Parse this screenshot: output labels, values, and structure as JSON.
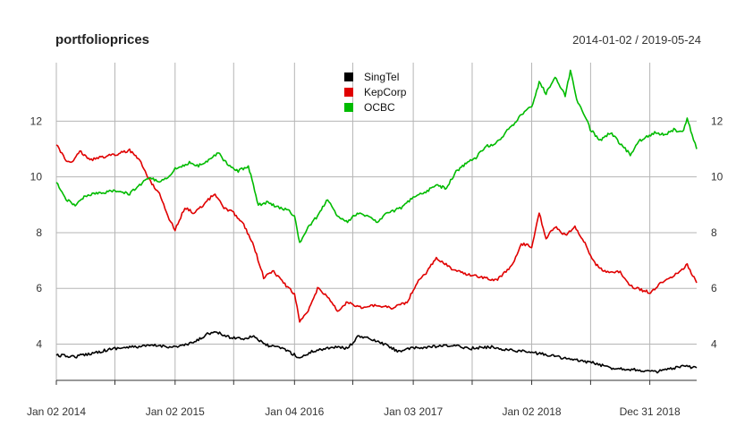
{
  "chart_data": {
    "type": "line",
    "title": "portfolioprices",
    "subtitle": "2014-01-02 / 2019-05-24",
    "xlabel": "",
    "ylabel": "",
    "x_range": [
      "2014-01-02",
      "2019-05-24"
    ],
    "ylim": [
      2.7,
      14.1
    ],
    "y_ticks": [
      4,
      6,
      8,
      10,
      12
    ],
    "x_ticks": [
      {
        "date": "2014-01-02",
        "label": "Jan 02 2014"
      },
      {
        "date": "2015-01-02",
        "label": "Jan 02 2015"
      },
      {
        "date": "2016-01-04",
        "label": "Jan 04 2016"
      },
      {
        "date": "2017-01-03",
        "label": "Jan 03 2017"
      },
      {
        "date": "2018-01-02",
        "label": "Jan 02 2018"
      },
      {
        "date": "2018-12-31",
        "label": "Dec 31 2018"
      }
    ],
    "minor_grid_dates": [
      "2014-07-01",
      "2015-07-01",
      "2016-07-01",
      "2017-07-03",
      "2018-07-02"
    ],
    "grid": true,
    "legend_position": "top-center",
    "series": [
      {
        "name": "SingTel",
        "color": "#000000",
        "points": [
          [
            "2014-01-02",
            3.6
          ],
          [
            "2014-03-01",
            3.55
          ],
          [
            "2014-05-01",
            3.7
          ],
          [
            "2014-07-01",
            3.85
          ],
          [
            "2014-09-01",
            3.9
          ],
          [
            "2014-11-01",
            3.95
          ],
          [
            "2015-01-02",
            3.9
          ],
          [
            "2015-02-15",
            4.0
          ],
          [
            "2015-03-15",
            4.15
          ],
          [
            "2015-04-15",
            4.4
          ],
          [
            "2015-05-15",
            4.4
          ],
          [
            "2015-06-15",
            4.25
          ],
          [
            "2015-08-01",
            4.2
          ],
          [
            "2015-09-01",
            4.3
          ],
          [
            "2015-10-01",
            4.0
          ],
          [
            "2015-11-01",
            3.9
          ],
          [
            "2015-12-01",
            3.85
          ],
          [
            "2016-01-20",
            3.5
          ],
          [
            "2016-03-01",
            3.75
          ],
          [
            "2016-05-01",
            3.9
          ],
          [
            "2016-06-15",
            3.85
          ],
          [
            "2016-07-20",
            4.3
          ],
          [
            "2016-09-01",
            4.15
          ],
          [
            "2016-10-15",
            3.95
          ],
          [
            "2016-11-15",
            3.75
          ],
          [
            "2017-01-03",
            3.85
          ],
          [
            "2017-03-01",
            3.9
          ],
          [
            "2017-05-01",
            3.95
          ],
          [
            "2017-07-01",
            3.85
          ],
          [
            "2017-09-01",
            3.9
          ],
          [
            "2017-10-15",
            3.8
          ],
          [
            "2017-12-01",
            3.75
          ],
          [
            "2018-01-02",
            3.7
          ],
          [
            "2018-03-01",
            3.6
          ],
          [
            "2018-05-01",
            3.45
          ],
          [
            "2018-07-01",
            3.35
          ],
          [
            "2018-09-01",
            3.15
          ],
          [
            "2018-11-01",
            3.1
          ],
          [
            "2019-01-15",
            3.0
          ],
          [
            "2019-03-01",
            3.1
          ],
          [
            "2019-04-15",
            3.2
          ],
          [
            "2019-05-24",
            3.15
          ]
        ]
      },
      {
        "name": "KepCorp",
        "color": "#e00000",
        "points": [
          [
            "2014-01-02",
            11.15
          ],
          [
            "2014-02-01",
            10.6
          ],
          [
            "2014-02-20",
            10.5
          ],
          [
            "2014-03-15",
            10.95
          ],
          [
            "2014-04-15",
            10.6
          ],
          [
            "2014-05-15",
            10.7
          ],
          [
            "2014-07-01",
            10.8
          ],
          [
            "2014-08-15",
            10.95
          ],
          [
            "2014-09-15",
            10.6
          ],
          [
            "2014-10-15",
            9.9
          ],
          [
            "2014-11-15",
            9.4
          ],
          [
            "2014-12-15",
            8.5
          ],
          [
            "2015-01-02",
            8.1
          ],
          [
            "2015-02-01",
            8.9
          ],
          [
            "2015-03-01",
            8.7
          ],
          [
            "2015-04-01",
            9.0
          ],
          [
            "2015-05-01",
            9.4
          ],
          [
            "2015-06-01",
            8.9
          ],
          [
            "2015-07-01",
            8.7
          ],
          [
            "2015-08-01",
            8.3
          ],
          [
            "2015-09-01",
            7.5
          ],
          [
            "2015-10-01",
            6.4
          ],
          [
            "2015-11-01",
            6.6
          ],
          [
            "2015-12-01",
            6.2
          ],
          [
            "2016-01-04",
            5.8
          ],
          [
            "2016-01-20",
            4.8
          ],
          [
            "2016-02-15",
            5.2
          ],
          [
            "2016-03-15",
            6.0
          ],
          [
            "2016-04-15",
            5.7
          ],
          [
            "2016-05-15",
            5.2
          ],
          [
            "2016-06-15",
            5.5
          ],
          [
            "2016-08-01",
            5.3
          ],
          [
            "2016-09-15",
            5.4
          ],
          [
            "2016-11-01",
            5.3
          ],
          [
            "2016-12-15",
            5.5
          ],
          [
            "2017-01-15",
            6.2
          ],
          [
            "2017-02-15",
            6.6
          ],
          [
            "2017-03-15",
            7.1
          ],
          [
            "2017-05-01",
            6.7
          ],
          [
            "2017-06-15",
            6.5
          ],
          [
            "2017-08-01",
            6.4
          ],
          [
            "2017-09-15",
            6.3
          ],
          [
            "2017-11-01",
            6.8
          ],
          [
            "2017-12-01",
            7.6
          ],
          [
            "2018-01-02",
            7.5
          ],
          [
            "2018-01-25",
            8.7
          ],
          [
            "2018-02-15",
            7.8
          ],
          [
            "2018-03-15",
            8.2
          ],
          [
            "2018-04-15",
            7.9
          ],
          [
            "2018-05-15",
            8.2
          ],
          [
            "2018-06-15",
            7.6
          ],
          [
            "2018-07-15",
            6.9
          ],
          [
            "2018-08-15",
            6.6
          ],
          [
            "2018-10-01",
            6.6
          ],
          [
            "2018-11-01",
            6.1
          ],
          [
            "2018-12-01",
            5.95
          ],
          [
            "2019-01-02",
            5.85
          ],
          [
            "2019-02-01",
            6.2
          ],
          [
            "2019-03-01",
            6.35
          ],
          [
            "2019-04-01",
            6.6
          ],
          [
            "2019-04-25",
            6.85
          ],
          [
            "2019-05-24",
            6.2
          ]
        ]
      },
      {
        "name": "OCBC",
        "color": "#00bb00",
        "points": [
          [
            "2014-01-02",
            9.8
          ],
          [
            "2014-02-01",
            9.2
          ],
          [
            "2014-03-01",
            9.0
          ],
          [
            "2014-04-01",
            9.3
          ],
          [
            "2014-05-01",
            9.4
          ],
          [
            "2014-07-01",
            9.5
          ],
          [
            "2014-08-15",
            9.4
          ],
          [
            "2014-09-15",
            9.7
          ],
          [
            "2014-10-15",
            10.0
          ],
          [
            "2014-11-15",
            9.8
          ],
          [
            "2014-12-15",
            10.0
          ],
          [
            "2015-01-02",
            10.3
          ],
          [
            "2015-02-15",
            10.5
          ],
          [
            "2015-03-15",
            10.4
          ],
          [
            "2015-04-15",
            10.6
          ],
          [
            "2015-05-15",
            10.85
          ],
          [
            "2015-06-15",
            10.4
          ],
          [
            "2015-07-15",
            10.2
          ],
          [
            "2015-08-15",
            10.4
          ],
          [
            "2015-09-15",
            9.0
          ],
          [
            "2015-10-15",
            9.1
          ],
          [
            "2015-11-15",
            8.9
          ],
          [
            "2015-12-15",
            8.8
          ],
          [
            "2016-01-04",
            8.6
          ],
          [
            "2016-01-20",
            7.6
          ],
          [
            "2016-02-15",
            8.2
          ],
          [
            "2016-03-15",
            8.6
          ],
          [
            "2016-04-15",
            9.2
          ],
          [
            "2016-05-15",
            8.6
          ],
          [
            "2016-06-15",
            8.4
          ],
          [
            "2016-07-15",
            8.7
          ],
          [
            "2016-08-15",
            8.6
          ],
          [
            "2016-09-15",
            8.4
          ],
          [
            "2016-10-15",
            8.7
          ],
          [
            "2016-12-01",
            8.9
          ],
          [
            "2017-01-03",
            9.3
          ],
          [
            "2017-02-15",
            9.5
          ],
          [
            "2017-03-15",
            9.7
          ],
          [
            "2017-04-15",
            9.6
          ],
          [
            "2017-05-15",
            10.2
          ],
          [
            "2017-06-15",
            10.5
          ],
          [
            "2017-07-15",
            10.7
          ],
          [
            "2017-08-15",
            11.1
          ],
          [
            "2017-09-15",
            11.2
          ],
          [
            "2017-10-15",
            11.6
          ],
          [
            "2017-11-15",
            12.0
          ],
          [
            "2017-12-15",
            12.4
          ],
          [
            "2018-01-02",
            12.5
          ],
          [
            "2018-01-25",
            13.4
          ],
          [
            "2018-02-15",
            13.0
          ],
          [
            "2018-03-15",
            13.6
          ],
          [
            "2018-04-15",
            12.9
          ],
          [
            "2018-05-01",
            13.8
          ],
          [
            "2018-05-20",
            12.8
          ],
          [
            "2018-06-15",
            12.2
          ],
          [
            "2018-07-01",
            11.7
          ],
          [
            "2018-08-01",
            11.3
          ],
          [
            "2018-09-01",
            11.6
          ],
          [
            "2018-10-01",
            11.2
          ],
          [
            "2018-11-01",
            10.8
          ],
          [
            "2018-12-01",
            11.3
          ],
          [
            "2019-01-15",
            11.6
          ],
          [
            "2019-02-15",
            11.5
          ],
          [
            "2019-03-15",
            11.7
          ],
          [
            "2019-04-10",
            11.6
          ],
          [
            "2019-04-25",
            12.1
          ],
          [
            "2019-05-10",
            11.5
          ],
          [
            "2019-05-24",
            11.0
          ]
        ]
      }
    ]
  }
}
